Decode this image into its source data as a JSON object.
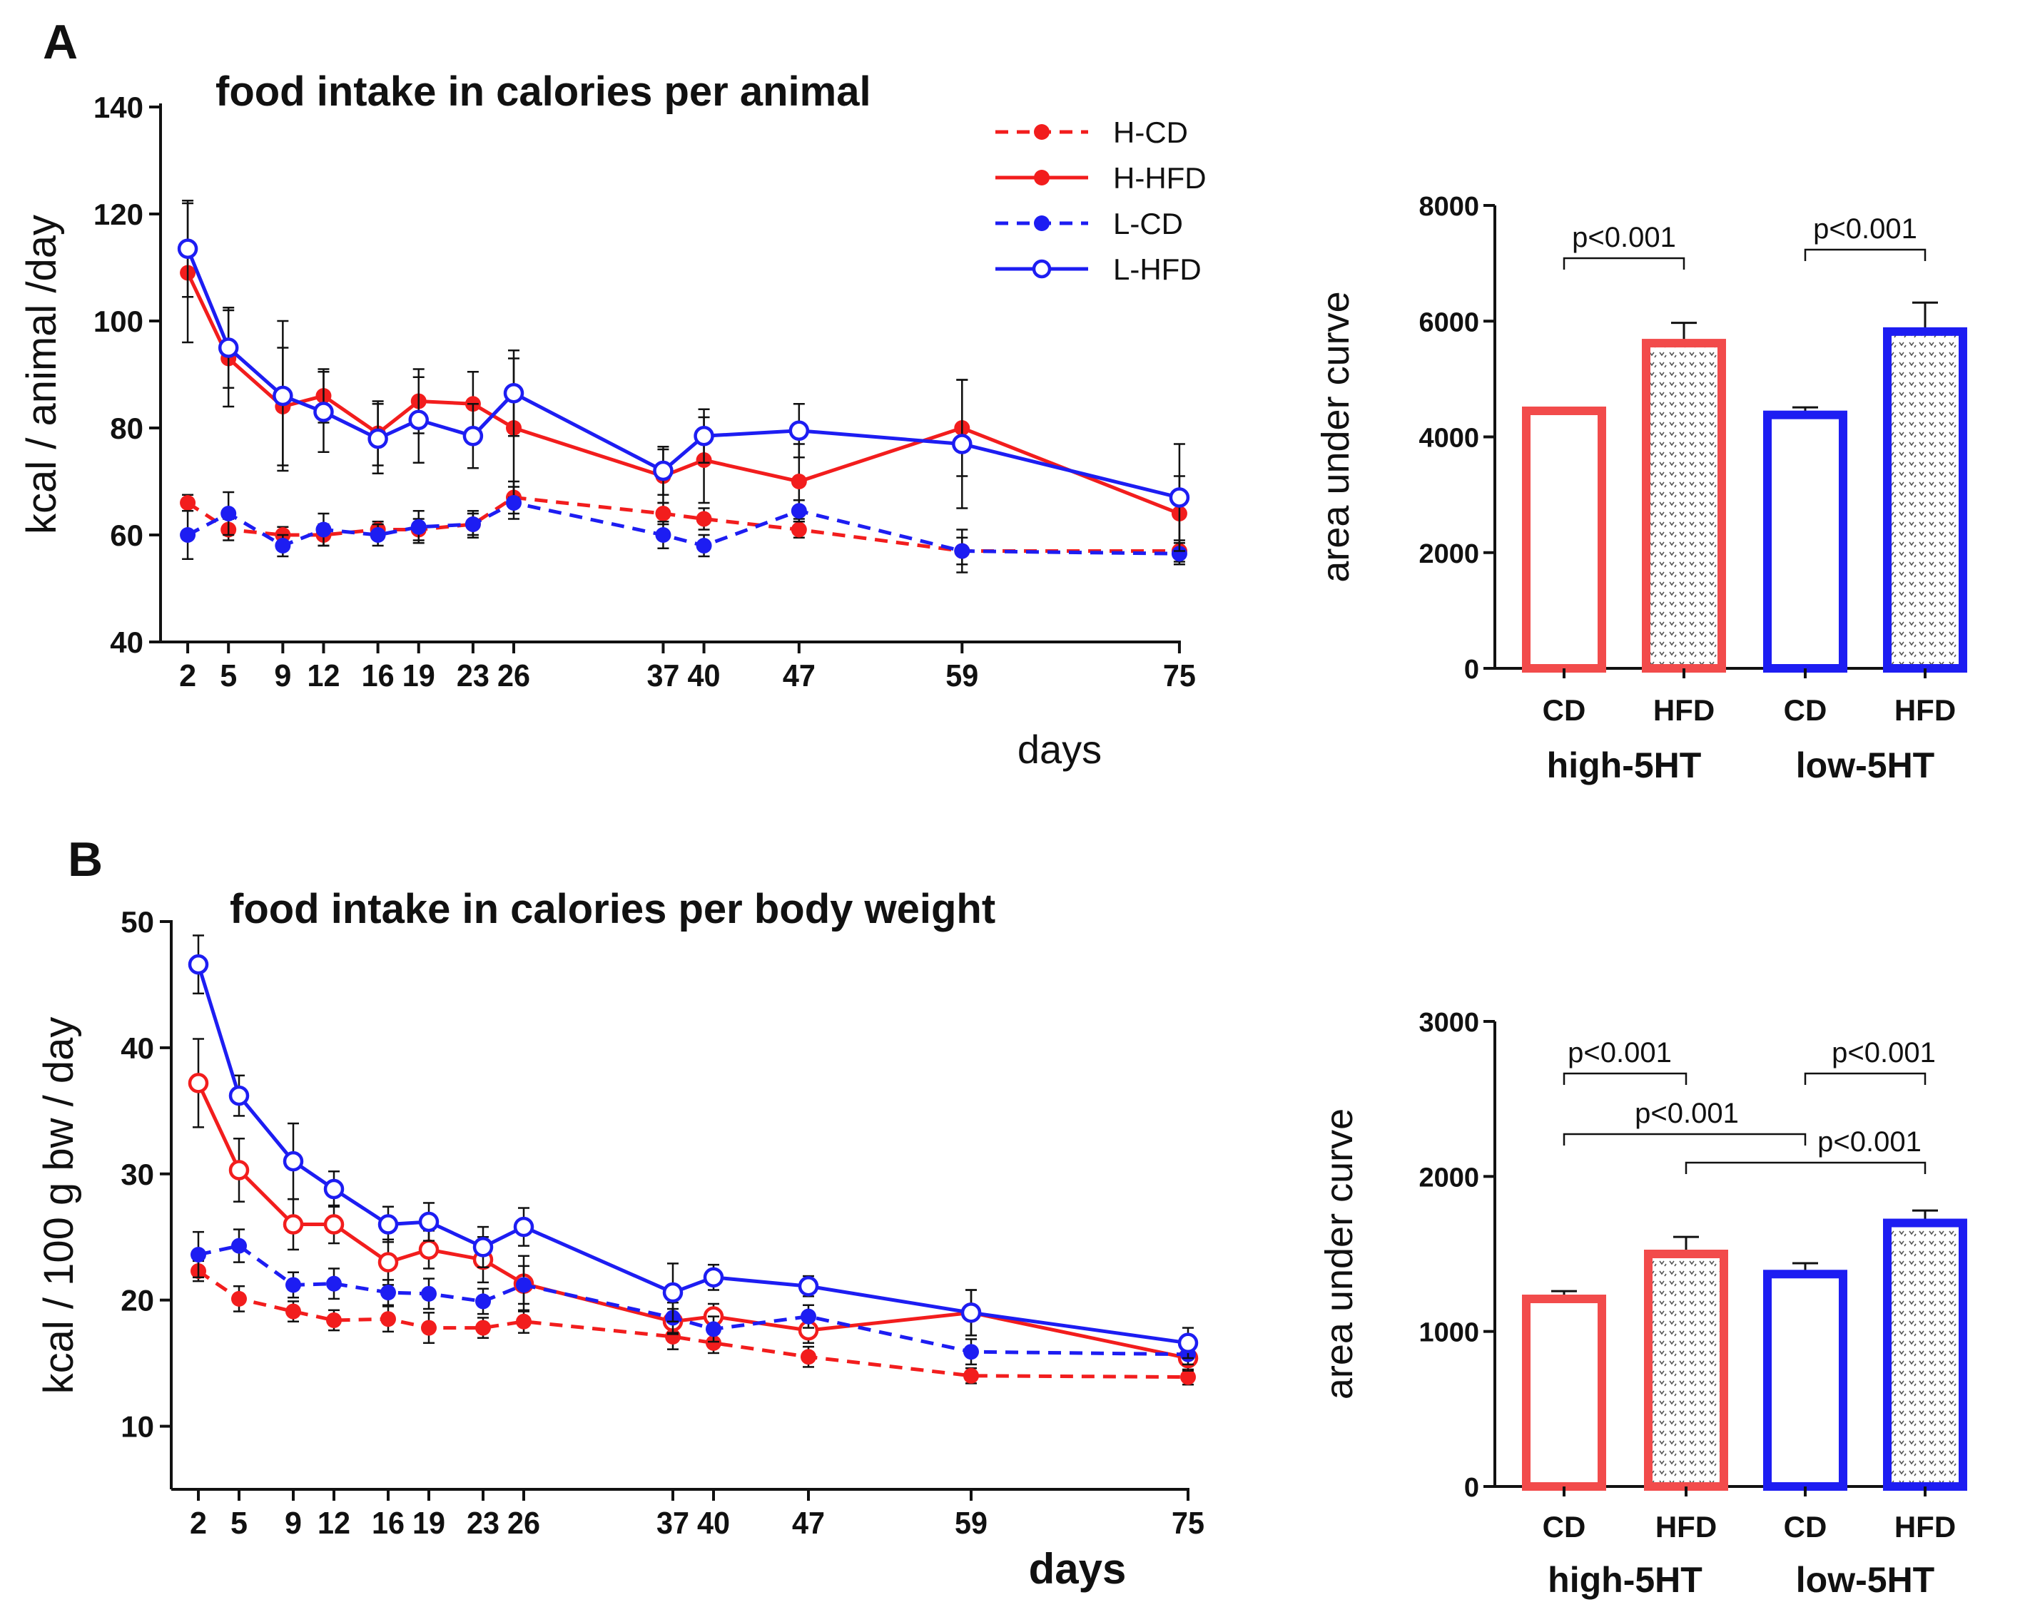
{
  "figure": {
    "panels": [
      {
        "id": "A",
        "label": "A"
      },
      {
        "id": "B",
        "label": "B"
      }
    ]
  },
  "chart_data": [
    {
      "panel": "A",
      "type": "line",
      "title": "food intake in calories per animal",
      "xlabel": "days",
      "ylabel": "kcal / animal /day",
      "ylim": [
        40,
        140
      ],
      "yticks": [
        40,
        60,
        80,
        100,
        120,
        140
      ],
      "x": [
        2,
        5,
        9,
        12,
        16,
        19,
        23,
        26,
        37,
        40,
        47,
        59,
        75
      ],
      "xticks": [
        "2",
        "5",
        "9",
        "12",
        "16",
        "19",
        "23",
        "26",
        "37",
        "40",
        "47",
        "59",
        "75"
      ],
      "legend_position": "top-right",
      "series": [
        {
          "name": "H-CD",
          "color": "#f21d1d",
          "dashed": true,
          "marker": "filled",
          "values": [
            66,
            61,
            60,
            60,
            61,
            61,
            62,
            67,
            64,
            63,
            61,
            57,
            57
          ],
          "errors": [
            1.5,
            2,
            1.5,
            2,
            1.5,
            2,
            2,
            3,
            2,
            2,
            1.5,
            2.5,
            2
          ]
        },
        {
          "name": "H-HFD",
          "color": "#f21d1d",
          "dashed": false,
          "marker": "filled",
          "values": [
            109,
            93,
            84,
            86,
            79,
            85,
            84.5,
            80,
            71,
            74,
            70,
            80,
            64
          ],
          "errors": [
            13,
            9,
            11,
            5,
            6,
            6,
            6,
            13,
            5,
            8,
            7,
            9,
            7
          ]
        },
        {
          "name": "L-CD",
          "color": "#1d1df2",
          "dashed": true,
          "marker": "filled",
          "values": [
            60,
            64,
            58,
            61,
            60,
            61.5,
            62,
            66,
            60,
            58,
            64.5,
            57,
            56.5
          ],
          "errors": [
            4.5,
            4,
            2,
            3,
            2,
            3,
            2.5,
            3,
            2.5,
            2,
            2,
            4,
            2
          ]
        },
        {
          "name": "L-HFD",
          "color": "#1d1df2",
          "dashed": false,
          "marker": "open",
          "values": [
            113.5,
            95,
            86,
            83,
            78,
            81.5,
            78.5,
            86.5,
            72,
            78.5,
            79.5,
            77,
            67
          ],
          "errors": [
            9,
            7.5,
            14,
            7.5,
            6.5,
            8,
            6,
            8,
            4.5,
            5,
            5,
            12,
            10
          ]
        }
      ]
    },
    {
      "panel": "A-auc",
      "type": "bar",
      "ylabel": "area under curve",
      "ylim": [
        0,
        8000
      ],
      "yticks": [
        0,
        2000,
        4000,
        6000,
        8000
      ],
      "categories": [
        "CD",
        "HFD",
        "CD",
        "HFD"
      ],
      "groups": [
        "high-5HT",
        "low-5HT"
      ],
      "values": [
        4450,
        5620,
        4380,
        5820
      ],
      "errors": [
        50,
        350,
        130,
        500
      ],
      "colors": [
        "#f24b4b",
        "#f24b4b",
        "#1d1df2",
        "#1d1df2"
      ],
      "patterned": [
        false,
        true,
        false,
        true
      ],
      "annotations": [
        {
          "text": "p<0.001",
          "from": 0,
          "to": 1
        },
        {
          "text": "p<0.001",
          "from": 2,
          "to": 3
        }
      ]
    },
    {
      "panel": "B",
      "type": "line",
      "title": "food intake in calories per body weight",
      "xlabel": "days",
      "ylabel": "kcal / 100 g bw / day",
      "ylim": [
        5,
        50
      ],
      "yticks": [
        10,
        20,
        30,
        40,
        50
      ],
      "x": [
        2,
        5,
        9,
        12,
        16,
        19,
        23,
        26,
        37,
        40,
        47,
        59,
        75
      ],
      "xticks": [
        "2",
        "5",
        "9",
        "12",
        "16",
        "19",
        "23",
        "26",
        "37",
        "40",
        "47",
        "59",
        "75"
      ],
      "series": [
        {
          "name": "H-CD",
          "color": "#f21d1d",
          "dashed": true,
          "marker": "filled",
          "values": [
            22.3,
            20.1,
            19.1,
            18.4,
            18.5,
            17.8,
            17.8,
            18.3,
            17.1,
            16.6,
            15.5,
            14,
            13.9
          ],
          "errors": [
            0.8,
            1,
            0.8,
            0.8,
            1,
            1.2,
            0.8,
            0.9,
            1,
            0.8,
            0.8,
            0.6,
            0.6
          ]
        },
        {
          "name": "H-HFD",
          "color": "#f21d1d",
          "dashed": false,
          "marker": "open",
          "values": [
            37.2,
            30.3,
            26,
            26,
            23,
            24,
            23.2,
            21.3,
            18.3,
            18.7,
            17.6,
            19,
            15.4
          ],
          "errors": [
            3.5,
            2.5,
            2,
            1.5,
            1.8,
            1.5,
            1.8,
            2.2,
            1,
            1,
            1,
            1.8,
            1
          ]
        },
        {
          "name": "L-CD",
          "color": "#1d1df2",
          "dashed": true,
          "marker": "filled",
          "values": [
            23.6,
            24.3,
            21.2,
            21.3,
            20.6,
            20.5,
            19.9,
            21.2,
            18.6,
            17.7,
            18.7,
            15.9,
            15.7
          ],
          "errors": [
            1.8,
            1.3,
            1,
            1.2,
            1,
            1.2,
            1,
            1.5,
            1.2,
            1,
            0.9,
            1,
            0.8
          ]
        },
        {
          "name": "L-HFD",
          "color": "#1d1df2",
          "dashed": false,
          "marker": "open",
          "values": [
            46.6,
            36.2,
            31,
            28.8,
            26,
            26.2,
            24.2,
            25.8,
            20.6,
            21.8,
            21.1,
            19,
            16.6
          ],
          "errors": [
            2.3,
            1.6,
            3,
            1.4,
            1.4,
            1.5,
            1.6,
            1.5,
            2.3,
            1,
            0.8,
            1.8,
            1.2
          ]
        }
      ]
    },
    {
      "panel": "B-auc",
      "type": "bar",
      "ylabel": "area under curve",
      "ylim": [
        0,
        3000
      ],
      "yticks": [
        0,
        1000,
        2000,
        3000
      ],
      "categories": [
        "CD",
        "HFD",
        "CD",
        "HFD"
      ],
      "groups": [
        "high-5HT",
        "low-5HT"
      ],
      "values": [
        1210,
        1500,
        1370,
        1700
      ],
      "errors": [
        50,
        110,
        70,
        80
      ],
      "colors": [
        "#f24b4b",
        "#f24b4b",
        "#1d1df2",
        "#1d1df2"
      ],
      "patterned": [
        false,
        true,
        false,
        true
      ],
      "annotations": [
        {
          "text": "p<0.001",
          "from": 0,
          "to": 1
        },
        {
          "text": "p<0.001",
          "from": 2,
          "to": 3
        },
        {
          "text": "p<0.001",
          "from": 0,
          "to": 2
        },
        {
          "text": "p<0.001",
          "from": 1,
          "to": 3
        }
      ]
    }
  ]
}
